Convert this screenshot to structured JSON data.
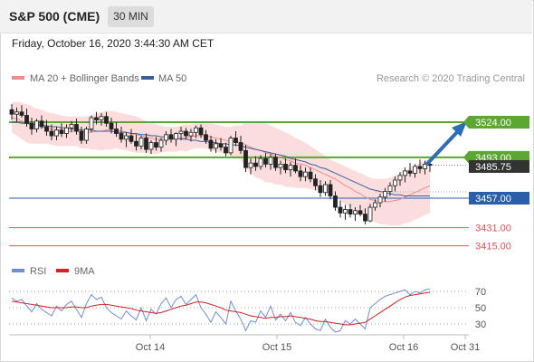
{
  "header": {
    "title": "S&P 500 (CME)",
    "timeframe": "30 MIN"
  },
  "date_text": "Friday, October 16, 2020 3:44:30 AM CET",
  "legend": {
    "bollinger": "MA 20 + Bollinger Bands",
    "ma50": "MA 50",
    "credit": "Research © 2020 Trading Central"
  },
  "rsi_legend": {
    "rsi": "RSI",
    "ma": "9MA"
  },
  "colors": {
    "support_red": "#e8505b",
    "resistance_green": "#5ca632",
    "pivot_blue": "#2a5ea8",
    "bollinger_fill": "#fbd7d7",
    "ma20": "#f28b8b",
    "ma50": "#3a5fa0",
    "rsi": "#6e8fd6",
    "rsi_ma": "#d42020",
    "arrow": "#2d6db5"
  },
  "chart_data": {
    "type": "candlestick",
    "price_range": [
      3400,
      3560
    ],
    "levels": [
      {
        "value": 3524.0,
        "label": "3524.00",
        "kind": "resistance"
      },
      {
        "value": 3493.0,
        "label": "3493.00",
        "kind": "resistance"
      },
      {
        "value": 3485.75,
        "label": "3485.75",
        "kind": "last"
      },
      {
        "value": 3457.0,
        "label": "3457.00",
        "kind": "pivot"
      },
      {
        "value": 3431.0,
        "label": "3431.00",
        "kind": "support"
      },
      {
        "value": 3415.0,
        "label": "3415.00",
        "kind": "support"
      }
    ],
    "x_ticks": [
      "Oct 14",
      "Oct 15",
      "Oct 16",
      "Oct 31"
    ],
    "rsi_ticks": [
      70,
      50,
      30
    ],
    "candles": [
      [
        3535,
        3540,
        3526,
        3531
      ],
      [
        3531,
        3537,
        3524,
        3533
      ],
      [
        3533,
        3539,
        3528,
        3530
      ],
      [
        3530,
        3536,
        3520,
        3523
      ],
      [
        3523,
        3528,
        3513,
        3518
      ],
      [
        3518,
        3527,
        3515,
        3525
      ],
      [
        3525,
        3530,
        3518,
        3520
      ],
      [
        3520,
        3526,
        3512,
        3516
      ],
      [
        3516,
        3522,
        3508,
        3512
      ],
      [
        3512,
        3520,
        3508,
        3517
      ],
      [
        3517,
        3523,
        3511,
        3514
      ],
      [
        3514,
        3522,
        3510,
        3519
      ],
      [
        3519,
        3525,
        3515,
        3522
      ],
      [
        3522,
        3527,
        3513,
        3516
      ],
      [
        3516,
        3520,
        3505,
        3508
      ],
      [
        3508,
        3520,
        3505,
        3518
      ],
      [
        3518,
        3530,
        3515,
        3528
      ],
      [
        3528,
        3533,
        3522,
        3526
      ],
      [
        3526,
        3532,
        3521,
        3529
      ],
      [
        3529,
        3533,
        3520,
        3523
      ],
      [
        3523,
        3528,
        3514,
        3518
      ],
      [
        3518,
        3524,
        3511,
        3514
      ],
      [
        3514,
        3520,
        3506,
        3509
      ],
      [
        3509,
        3515,
        3502,
        3512
      ],
      [
        3512,
        3518,
        3505,
        3507
      ],
      [
        3507,
        3513,
        3499,
        3503
      ],
      [
        3503,
        3512,
        3500,
        3510
      ],
      [
        3510,
        3514,
        3497,
        3500
      ],
      [
        3500,
        3508,
        3496,
        3506
      ],
      [
        3506,
        3511,
        3499,
        3502
      ],
      [
        3502,
        3510,
        3498,
        3508
      ],
      [
        3508,
        3516,
        3504,
        3513
      ],
      [
        3513,
        3518,
        3506,
        3509
      ],
      [
        3509,
        3515,
        3503,
        3514
      ],
      [
        3514,
        3520,
        3508,
        3516
      ],
      [
        3516,
        3519,
        3509,
        3512
      ],
      [
        3512,
        3518,
        3507,
        3515
      ],
      [
        3515,
        3521,
        3510,
        3519
      ],
      [
        3519,
        3522,
        3510,
        3513
      ],
      [
        3513,
        3517,
        3505,
        3508
      ],
      [
        3508,
        3512,
        3498,
        3501
      ],
      [
        3501,
        3509,
        3497,
        3505
      ],
      [
        3505,
        3510,
        3499,
        3502
      ],
      [
        3502,
        3506,
        3494,
        3497
      ],
      [
        3497,
        3512,
        3495,
        3510
      ],
      [
        3510,
        3516,
        3503,
        3506
      ],
      [
        3506,
        3512,
        3496,
        3499
      ],
      [
        3499,
        3504,
        3480,
        3484
      ],
      [
        3484,
        3492,
        3478,
        3488
      ],
      [
        3488,
        3494,
        3481,
        3485
      ],
      [
        3485,
        3495,
        3482,
        3492
      ],
      [
        3492,
        3497,
        3484,
        3487
      ],
      [
        3487,
        3496,
        3482,
        3493
      ],
      [
        3493,
        3496,
        3481,
        3484
      ],
      [
        3484,
        3490,
        3478,
        3487
      ],
      [
        3487,
        3492,
        3479,
        3482
      ],
      [
        3482,
        3489,
        3476,
        3486
      ],
      [
        3486,
        3492,
        3479,
        3481
      ],
      [
        3481,
        3486,
        3472,
        3476
      ],
      [
        3476,
        3484,
        3472,
        3480
      ],
      [
        3480,
        3484,
        3471,
        3474
      ],
      [
        3474,
        3478,
        3464,
        3468
      ],
      [
        3468,
        3473,
        3458,
        3462
      ],
      [
        3462,
        3472,
        3459,
        3469
      ],
      [
        3469,
        3473,
        3456,
        3459
      ],
      [
        3459,
        3463,
        3446,
        3449
      ],
      [
        3449,
        3455,
        3440,
        3444
      ],
      [
        3444,
        3451,
        3438,
        3447
      ],
      [
        3447,
        3452,
        3440,
        3443
      ],
      [
        3443,
        3449,
        3437,
        3446
      ],
      [
        3446,
        3451,
        3441,
        3443
      ],
      [
        3443,
        3448,
        3434,
        3437
      ],
      [
        3437,
        3452,
        3436,
        3449
      ],
      [
        3449,
        3456,
        3446,
        3453
      ],
      [
        3453,
        3461,
        3449,
        3458
      ],
      [
        3458,
        3466,
        3454,
        3463
      ],
      [
        3463,
        3471,
        3459,
        3468
      ],
      [
        3468,
        3476,
        3463,
        3473
      ],
      [
        3473,
        3480,
        3468,
        3477
      ],
      [
        3477,
        3484,
        3471,
        3481
      ],
      [
        3481,
        3488,
        3476,
        3479
      ],
      [
        3479,
        3487,
        3475,
        3485
      ],
      [
        3485,
        3491,
        3479,
        3483
      ],
      [
        3483,
        3490,
        3478,
        3487
      ],
      [
        3487,
        3492,
        3480,
        3486
      ]
    ],
    "ma20": [
      3528,
      3527,
      3525,
      3523,
      3522,
      3521,
      3520,
      3519,
      3518,
      3517,
      3517,
      3516,
      3516,
      3516,
      3515,
      3515,
      3515,
      3516,
      3516,
      3517,
      3517,
      3517,
      3516,
      3515,
      3514,
      3513,
      3512,
      3511,
      3510,
      3509,
      3509,
      3509,
      3509,
      3509,
      3510,
      3510,
      3511,
      3512,
      3512,
      3512,
      3511,
      3510,
      3509,
      3508,
      3507,
      3507,
      3506,
      3504,
      3502,
      3500,
      3499,
      3497,
      3496,
      3494,
      3493,
      3491,
      3490,
      3488,
      3487,
      3486,
      3484,
      3482,
      3480,
      3478,
      3476,
      3474,
      3471,
      3468,
      3466,
      3463,
      3461,
      3458,
      3456,
      3455,
      3454,
      3454,
      3454,
      3455,
      3456,
      3458,
      3460,
      3462,
      3464,
      3466,
      3468
    ],
    "bb_upper": [
      3541,
      3542,
      3541,
      3540,
      3538,
      3536,
      3535,
      3533,
      3532,
      3531,
      3530,
      3529,
      3529,
      3529,
      3529,
      3529,
      3530,
      3532,
      3533,
      3534,
      3534,
      3533,
      3532,
      3531,
      3530,
      3529,
      3527,
      3525,
      3524,
      3522,
      3521,
      3520,
      3520,
      3520,
      3521,
      3522,
      3522,
      3523,
      3523,
      3523,
      3523,
      3522,
      3521,
      3520,
      3520,
      3521,
      3521,
      3524,
      3525,
      3525,
      3524,
      3523,
      3521,
      3519,
      3517,
      3515,
      3513,
      3510,
      3508,
      3506,
      3503,
      3500,
      3497,
      3494,
      3491,
      3489,
      3487,
      3485,
      3483,
      3481,
      3479,
      3477,
      3475,
      3474,
      3474,
      3474,
      3475,
      3477,
      3479,
      3481,
      3484,
      3486,
      3488,
      3490,
      3492
    ],
    "bb_lower": [
      3515,
      3512,
      3509,
      3506,
      3505,
      3505,
      3505,
      3505,
      3504,
      3503,
      3503,
      3503,
      3503,
      3503,
      3501,
      3501,
      3500,
      3500,
      3499,
      3500,
      3500,
      3501,
      3500,
      3499,
      3498,
      3497,
      3497,
      3497,
      3496,
      3496,
      3497,
      3498,
      3498,
      3498,
      3499,
      3498,
      3500,
      3501,
      3501,
      3501,
      3499,
      3498,
      3497,
      3496,
      3494,
      3493,
      3491,
      3484,
      3479,
      3475,
      3474,
      3471,
      3471,
      3469,
      3469,
      3467,
      3467,
      3466,
      3466,
      3466,
      3465,
      3464,
      3463,
      3462,
      3461,
      3459,
      3455,
      3451,
      3449,
      3445,
      3443,
      3439,
      3437,
      3436,
      3434,
      3434,
      3433,
      3433,
      3433,
      3435,
      3436,
      3438,
      3440,
      3442,
      3444
    ],
    "ma50": [
      3524,
      3524,
      3523,
      3523,
      3522,
      3522,
      3521,
      3521,
      3520,
      3520,
      3519,
      3519,
      3518,
      3518,
      3517,
      3517,
      3517,
      3516,
      3516,
      3516,
      3516,
      3515,
      3515,
      3515,
      3514,
      3514,
      3513,
      3513,
      3512,
      3512,
      3511,
      3511,
      3510,
      3510,
      3509,
      3509,
      3508,
      3508,
      3507,
      3507,
      3506,
      3506,
      3505,
      3505,
      3504,
      3504,
      3503,
      3502,
      3501,
      3500,
      3499,
      3498,
      3497,
      3496,
      3495,
      3494,
      3492,
      3491,
      3490,
      3489,
      3487,
      3486,
      3484,
      3483,
      3481,
      3479,
      3477,
      3475,
      3473,
      3471,
      3469,
      3467,
      3465,
      3464,
      3463,
      3462,
      3461,
      3460,
      3460,
      3459,
      3459,
      3459,
      3459,
      3459,
      3459
    ],
    "rsi": [
      62,
      58,
      60,
      52,
      45,
      55,
      48,
      44,
      40,
      52,
      46,
      54,
      58,
      48,
      38,
      55,
      66,
      60,
      63,
      50,
      44,
      40,
      36,
      46,
      40,
      35,
      50,
      34,
      48,
      42,
      55,
      62,
      50,
      60,
      64,
      54,
      60,
      66,
      50,
      42,
      32,
      45,
      38,
      30,
      58,
      46,
      36,
      22,
      34,
      32,
      46,
      38,
      52,
      35,
      42,
      34,
      44,
      32,
      28,
      38,
      30,
      24,
      22,
      36,
      26,
      20,
      22,
      34,
      30,
      36,
      30,
      24,
      50,
      55,
      60,
      64,
      66,
      68,
      70,
      72,
      66,
      70,
      68,
      72,
      73
    ],
    "rsi_ma": [
      58,
      57,
      56,
      55,
      54,
      53,
      52,
      51,
      50,
      50,
      50,
      50,
      51,
      51,
      50,
      50,
      52,
      53,
      54,
      54,
      53,
      52,
      51,
      50,
      49,
      47,
      46,
      45,
      44,
      43,
      44,
      46,
      48,
      50,
      52,
      53,
      55,
      57,
      57,
      56,
      54,
      52,
      50,
      47,
      46,
      45,
      44,
      42,
      40,
      39,
      38,
      37,
      38,
      38,
      39,
      39,
      40,
      39,
      38,
      37,
      36,
      34,
      33,
      33,
      32,
      31,
      30,
      29,
      29,
      30,
      31,
      32,
      36,
      40,
      44,
      48,
      52,
      56,
      60,
      63,
      65,
      66,
      67,
      68,
      69
    ]
  }
}
